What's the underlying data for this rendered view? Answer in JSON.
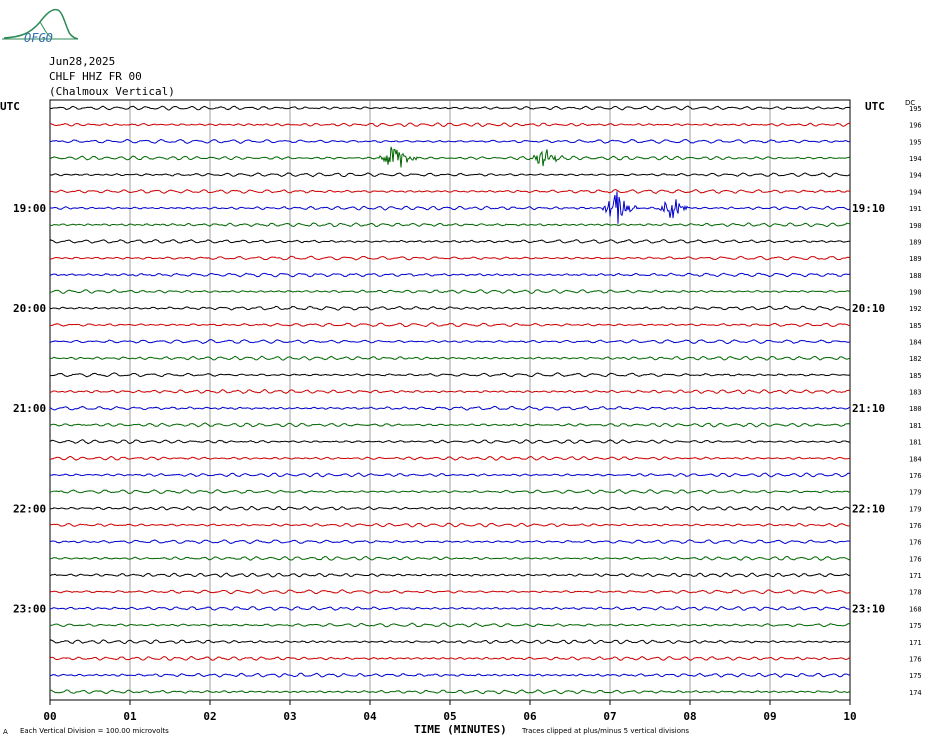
{
  "logo": {
    "text": "OFGO"
  },
  "header": {
    "date": "Jun28,2025",
    "station": "CHLF HHZ FR 00",
    "location": "(Chalmoux Vertical)"
  },
  "utc_left": "UTC",
  "utc_right": "UTC",
  "dc_label": "DC",
  "footer": {
    "scale_note": "Each Vertical Division =  100.00 microvolts",
    "clip_note": "Traces clipped at plus/minus 5 vertical divisions",
    "small_mark": "A"
  },
  "colors": {
    "black": "#000000",
    "red": "#cc0000",
    "blue": "#0000cc",
    "green": "#006600",
    "grid": "#888888",
    "logo": "#2e8b57"
  },
  "chart_data": {
    "type": "line",
    "title": "",
    "xlabel": "TIME (MINUTES)",
    "ylabel": "",
    "xlim": [
      0,
      10
    ],
    "x_ticks": [
      "00",
      "01",
      "02",
      "03",
      "04",
      "05",
      "06",
      "07",
      "08",
      "09",
      "10"
    ],
    "trace_colors": [
      "black",
      "red",
      "blue",
      "green"
    ],
    "trace_count": 36,
    "left_hour_labels": [
      {
        "row": 6,
        "label": "19:00"
      },
      {
        "row": 12,
        "label": "20:00"
      },
      {
        "row": 18,
        "label": "21:00"
      },
      {
        "row": 24,
        "label": "22:00"
      },
      {
        "row": 30,
        "label": "23:00"
      }
    ],
    "right_hour_labels": [
      {
        "row": 6,
        "label": "19:10"
      },
      {
        "row": 12,
        "label": "20:10"
      },
      {
        "row": 18,
        "label": "21:10"
      },
      {
        "row": 24,
        "label": "22:10"
      },
      {
        "row": 30,
        "label": "23:10"
      }
    ],
    "dc_offsets": [
      195,
      196,
      195,
      194,
      194,
      194,
      191,
      190,
      189,
      189,
      188,
      190,
      192,
      185,
      184,
      182,
      185,
      183,
      180,
      181,
      181,
      184,
      176,
      179,
      179,
      176,
      176,
      176,
      171,
      178,
      168,
      175,
      171,
      176,
      175,
      174
    ],
    "events": [
      {
        "row": 3,
        "start_min": 4.1,
        "end_min": 4.6,
        "peak_min": 4.38,
        "amplitude": 1.0
      },
      {
        "row": 3,
        "start_min": 6.0,
        "end_min": 6.45,
        "peak_min": 6.2,
        "amplitude": 0.55
      },
      {
        "row": 6,
        "start_min": 6.9,
        "end_min": 7.35,
        "peak_min": 7.1,
        "amplitude": 1.0
      },
      {
        "row": 6,
        "start_min": 7.6,
        "end_min": 8.0,
        "peak_min": 7.8,
        "amplitude": 0.85
      }
    ]
  }
}
